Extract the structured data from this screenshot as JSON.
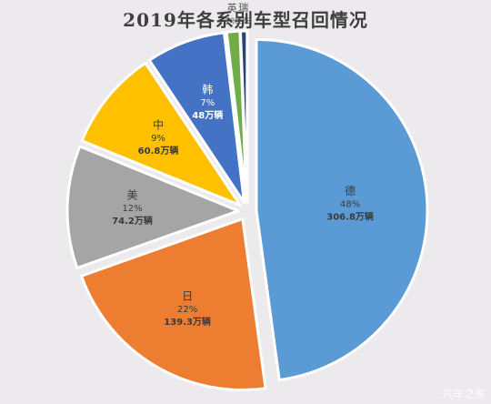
{
  "chart_data": {
    "type": "pie",
    "title": "2019年各系别车型召回情况",
    "slices": [
      {
        "name": "德",
        "percent": "48%",
        "amount": "306.8万辆",
        "value": 306.8,
        "color": "#5b9bd5"
      },
      {
        "name": "日",
        "percent": "22%",
        "amount": "139.3万辆",
        "value": 139.3,
        "color": "#ed7d31"
      },
      {
        "name": "美",
        "percent": "12%",
        "amount": "74.2万辆",
        "value": 74.2,
        "color": "#a5a5a5"
      },
      {
        "name": "中",
        "percent": "9%",
        "amount": "60.8万辆",
        "value": 60.8,
        "color": "#ffc000"
      },
      {
        "name": "韩",
        "percent": "7%",
        "amount": "48万辆",
        "value": 48,
        "color": "#4472c4"
      },
      {
        "name": "英",
        "percent": "1%",
        "amount": "",
        "value": 8,
        "color": "#70ad47"
      },
      {
        "name": "瑞",
        "percent": "1%",
        "amount": "",
        "value": 4,
        "color": "#264478"
      }
    ],
    "legend": "none",
    "labels": "inside"
  },
  "watermark": "汽车之家"
}
